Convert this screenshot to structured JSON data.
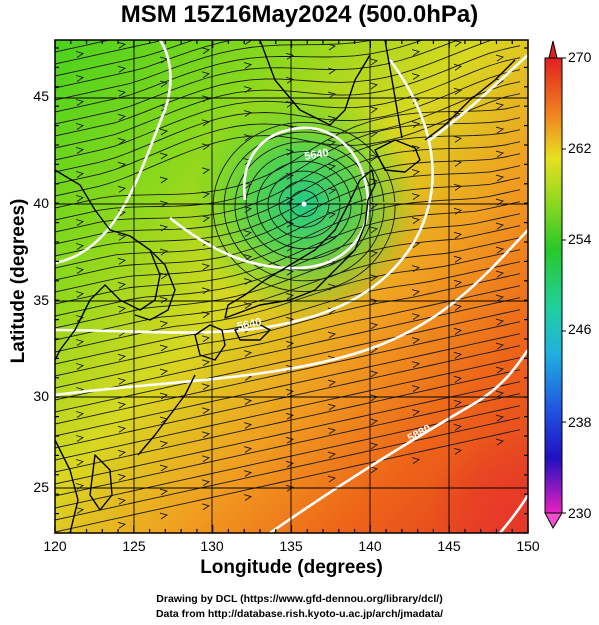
{
  "map": {
    "title": "MSM 15Z16May2024 (500.0hPa)",
    "xlabel": "Longitude (degrees)",
    "ylabel": "Latitude  (degrees)",
    "x_ticks": [
      "120",
      "125",
      "130",
      "135",
      "140",
      "145",
      "150"
    ],
    "y_ticks": [
      "25",
      "30",
      "35",
      "40",
      "45"
    ],
    "lon_range": [
      120,
      150
    ],
    "lat_range": [
      22.5,
      47.6
    ],
    "colorbar": {
      "min": 230,
      "max": 270,
      "tick_labels": [
        "270",
        "262",
        "254",
        "246",
        "238",
        "230"
      ]
    },
    "contour_labels": [
      "5640",
      "5640",
      "5880"
    ],
    "cyclone_center": {
      "lon": 135.5,
      "lat": 40
    },
    "credits": [
      "Drawing by DCL (https://www.gfd-dennou.org/library/dcl/)",
      "Data from http://database.rish.kyoto-u.ac.jp/arch/jmadata/"
    ]
  }
}
